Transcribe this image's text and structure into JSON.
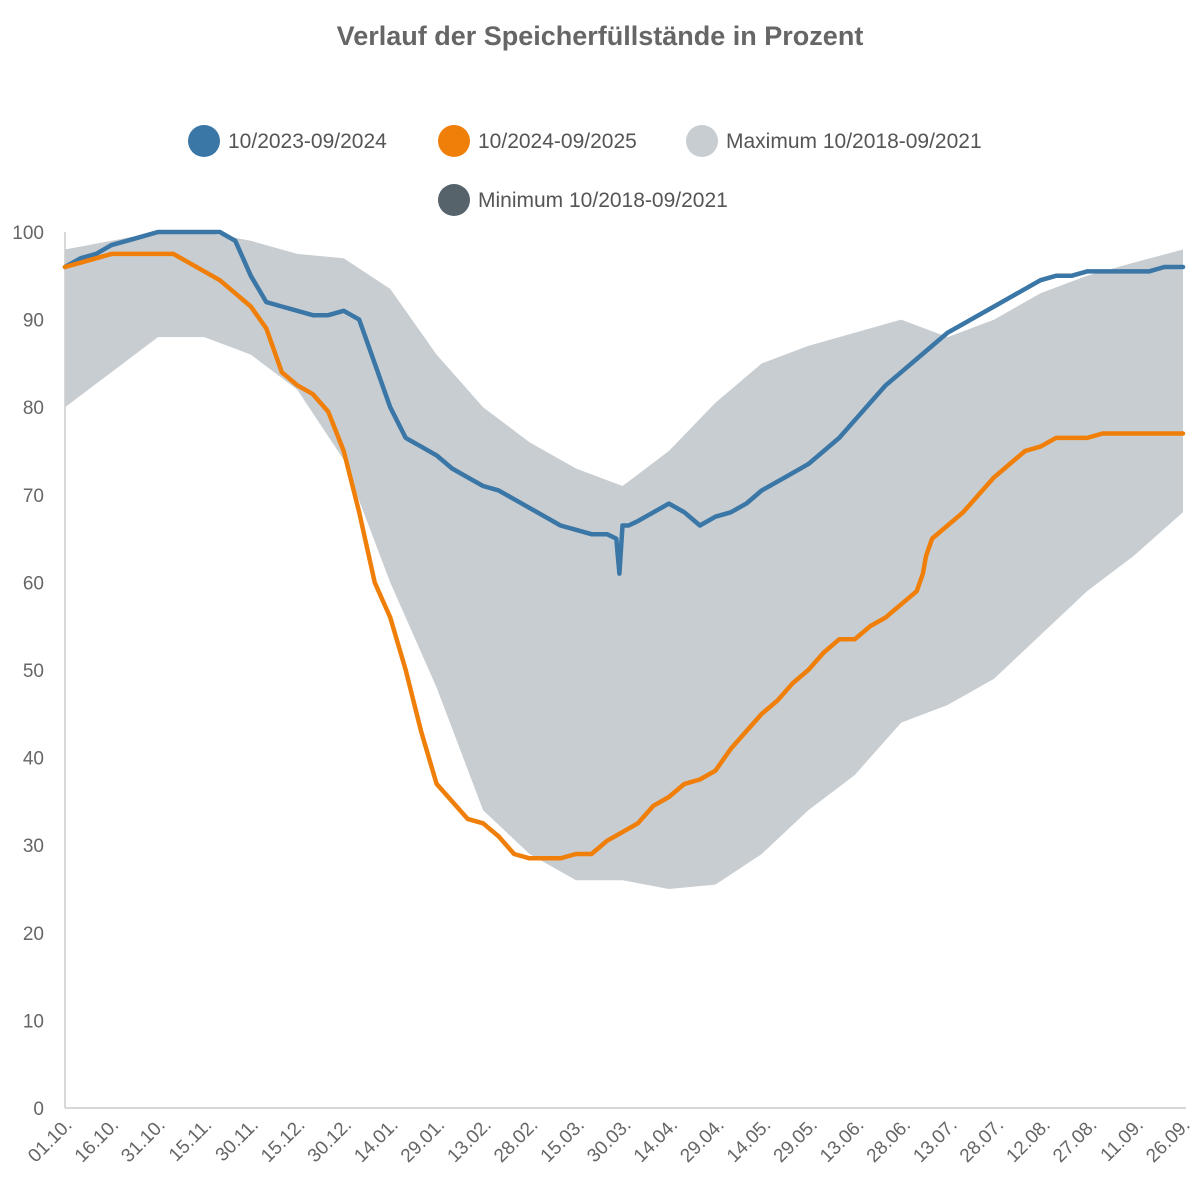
{
  "chart_data": {
    "type": "line",
    "title": "Verlauf der Speicherfüllstände in Prozent",
    "xlabel": "",
    "ylabel": "",
    "ylim": [
      0,
      100
    ],
    "y_ticks": [
      0,
      10,
      20,
      30,
      40,
      50,
      60,
      70,
      80,
      90,
      100
    ],
    "x_ticks": [
      "01.10.",
      "16.10.",
      "31.10.",
      "15.11.",
      "30.11.",
      "15.12.",
      "30.12.",
      "14.01.",
      "29.01.",
      "13.02.",
      "28.02.",
      "15.03.",
      "30.03.",
      "14.04.",
      "29.04.",
      "14.05.",
      "29.05.",
      "13.06.",
      "28.06.",
      "13.07.",
      "28.07.",
      "12.08.",
      "27.08.",
      "11.09.",
      "26.09."
    ],
    "x_range_days": [
      0,
      361
    ],
    "legend": [
      {
        "label": "10/2023-09/2024",
        "color": "#3a76a6"
      },
      {
        "label": "10/2024-09/2025",
        "color": "#f07f0a"
      },
      {
        "label": "Maximum 10/2018-09/2021",
        "color": "#c8cdd1"
      },
      {
        "label": "Minimum 10/2018-09/2021",
        "color": "#56636b"
      }
    ],
    "band": {
      "x_days": [
        0,
        15,
        30,
        45,
        60,
        75,
        90,
        105,
        120,
        135,
        150,
        165,
        180,
        195,
        210,
        225,
        240,
        255,
        270,
        285,
        300,
        315,
        330,
        345,
        361
      ],
      "max": [
        98,
        99,
        100,
        100,
        99,
        97.5,
        97,
        93.5,
        86,
        80,
        76,
        73,
        71,
        75,
        80.5,
        85,
        87,
        88.5,
        90,
        88,
        90,
        93,
        95,
        96.5,
        98
      ],
      "min": [
        80,
        84,
        88,
        88,
        86,
        82,
        74,
        60,
        48,
        34,
        29,
        26,
        26,
        25,
        25.5,
        29,
        34,
        38,
        44,
        46,
        49,
        54,
        59,
        63,
        68
      ]
    },
    "series": [
      {
        "name": "10/2023-09/2024",
        "color": "#3a76a6",
        "x_days": [
          0,
          5,
          10,
          15,
          20,
          25,
          30,
          35,
          40,
          45,
          50,
          55,
          60,
          65,
          70,
          75,
          80,
          85,
          90,
          95,
          100,
          105,
          110,
          115,
          120,
          125,
          130,
          135,
          140,
          145,
          150,
          155,
          160,
          165,
          170,
          175,
          178,
          179,
          180,
          182,
          185,
          190,
          195,
          200,
          205,
          210,
          215,
          220,
          225,
          230,
          235,
          240,
          245,
          250,
          255,
          260,
          265,
          270,
          275,
          280,
          285,
          290,
          295,
          300,
          305,
          310,
          315,
          320,
          325,
          330,
          335,
          340,
          345,
          350,
          355,
          361
        ],
        "values": [
          96,
          97,
          97.5,
          98.5,
          99,
          99.5,
          100,
          100,
          100,
          100,
          100,
          99,
          95,
          92,
          91.5,
          91,
          90.5,
          90.5,
          91,
          90,
          85,
          80,
          76.5,
          75.5,
          74.5,
          73,
          72,
          71,
          70.5,
          69.5,
          68.5,
          67.5,
          66.5,
          66,
          65.5,
          65.5,
          65,
          61,
          66.5,
          66.5,
          67,
          68,
          69,
          68,
          66.5,
          67.5,
          68,
          69,
          70.5,
          71.5,
          72.5,
          73.5,
          75,
          76.5,
          78.5,
          80.5,
          82.5,
          84,
          85.5,
          87,
          88.5,
          89.5,
          90.5,
          91.5,
          92.5,
          93.5,
          94.5,
          95,
          95,
          95.5,
          95.5,
          95.5,
          95.5,
          95.5,
          96,
          96
        ]
      },
      {
        "name": "10/2024-09/2025",
        "color": "#f07f0a",
        "x_days": [
          0,
          5,
          10,
          15,
          20,
          25,
          30,
          35,
          40,
          45,
          50,
          55,
          60,
          65,
          70,
          75,
          80,
          85,
          90,
          95,
          100,
          105,
          110,
          115,
          120,
          125,
          130,
          135,
          140,
          145,
          150,
          155,
          160,
          165,
          170,
          175,
          180,
          185,
          190,
          195,
          200,
          205,
          210,
          215,
          220,
          225,
          230,
          235,
          240,
          245,
          250,
          255,
          260,
          265,
          270,
          275,
          277,
          278,
          280,
          285,
          290,
          295,
          300,
          305,
          310,
          315,
          320,
          325,
          330,
          335,
          340,
          345,
          350,
          355,
          361
        ],
        "values": [
          96,
          96.5,
          97,
          97.5,
          97.5,
          97.5,
          97.5,
          97.5,
          96.5,
          95.5,
          94.5,
          93,
          91.5,
          89,
          84,
          82.5,
          81.5,
          79.5,
          75,
          68,
          60,
          56,
          50,
          43,
          37,
          35,
          33,
          32.5,
          31,
          29,
          28.5,
          28.5,
          28.5,
          29,
          29,
          30.5,
          31.5,
          32.5,
          34.5,
          35.5,
          37,
          37.5,
          38.5,
          41,
          43,
          45,
          46.5,
          48.5,
          50,
          52,
          53.5,
          53.5,
          55,
          56,
          57.5,
          59,
          61,
          63,
          65,
          66.5,
          68,
          70,
          72,
          73.5,
          75,
          75.5,
          76.5,
          76.5,
          76.5,
          77,
          77,
          77,
          77,
          77,
          77
        ]
      }
    ]
  }
}
